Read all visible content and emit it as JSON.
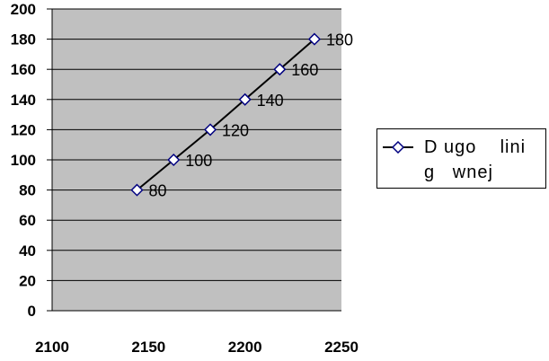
{
  "chart_data": {
    "type": "line",
    "x": [
      2144,
      2163,
      2182,
      2200,
      2218,
      2236
    ],
    "series": [
      {
        "name": "D ugo    lini g   wnej",
        "values": [
          80,
          100,
          120,
          140,
          160,
          180
        ],
        "data_labels": [
          "80",
          "100",
          "120",
          "140",
          "160",
          "180"
        ],
        "color": "#000000",
        "marker_color": "#000080"
      }
    ],
    "xlim": [
      2100,
      2250
    ],
    "ylim": [
      0,
      200
    ],
    "x_ticks": [
      "2100",
      "2150",
      "2200",
      "2250"
    ],
    "y_ticks": [
      "0",
      "20",
      "40",
      "60",
      "80",
      "100",
      "120",
      "140",
      "160",
      "180",
      "200"
    ],
    "plot_background": "#c0c0c0",
    "grid": true,
    "legend_position": "right"
  },
  "legend": {
    "label": "D ugo    lini\ng   wnej"
  }
}
